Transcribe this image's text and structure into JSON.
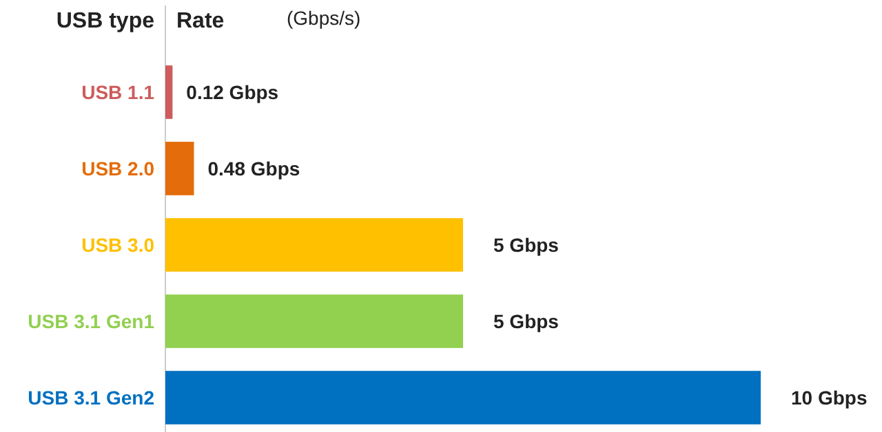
{
  "chart_data": {
    "type": "bar",
    "orientation": "horizontal",
    "ylabel": "USB type",
    "xlabel": "Rate",
    "annotations": [
      "(Gbps/s)"
    ],
    "categories": [
      "USB 1.1",
      "USB 2.0",
      "USB 3.0",
      "USB 3.1 Gen1",
      "USB 3.1 Gen2"
    ],
    "values": [
      0.12,
      0.48,
      5,
      5,
      10
    ],
    "colors": [
      "#cd5c5c",
      "#e46c0a",
      "#ffc000",
      "#92d050",
      "#0070c0"
    ],
    "value_labels": [
      "0.12 Gbps",
      "0.48 Gbps",
      "5 Gbps",
      "5 Gbps",
      "10 Gbps"
    ]
  }
}
